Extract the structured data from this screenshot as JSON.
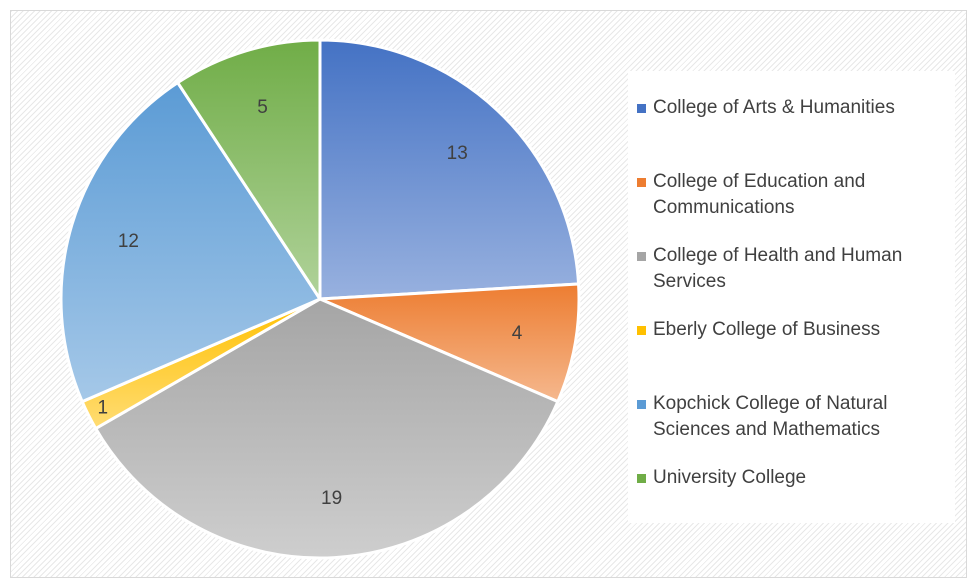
{
  "chart_data": {
    "type": "pie",
    "title": "",
    "legend_position": "right",
    "categories": [
      "College of Arts & Humanities",
      "College of Education and Communications",
      "College of Health and Human Services",
      "Eberly College of Business",
      "Kopchick College of Natural Sciences and Mathematics",
      "University College"
    ],
    "values": [
      13,
      4,
      19,
      1,
      12,
      5
    ],
    "data_labels": [
      "13",
      "4",
      "19",
      "1",
      "12",
      "5"
    ],
    "colors": [
      "#4472c4",
      "#ed7d31",
      "#a5a5a5",
      "#ffc000",
      "#5b9bd5",
      "#70ad47"
    ]
  },
  "legend": {
    "items": [
      {
        "label": "College of Arts & Humanities",
        "color": "#4472c4"
      },
      {
        "label": "College of Education and Communications",
        "color": "#ed7d31"
      },
      {
        "label": "College of Health and Human Services",
        "color": "#a5a5a5"
      },
      {
        "label": "Eberly College of Business",
        "color": "#ffc000"
      },
      {
        "label": "Kopchick College of Natural Sciences and Mathematics",
        "color": "#5b9bd5"
      },
      {
        "label": "University College",
        "color": "#70ad47"
      }
    ]
  }
}
